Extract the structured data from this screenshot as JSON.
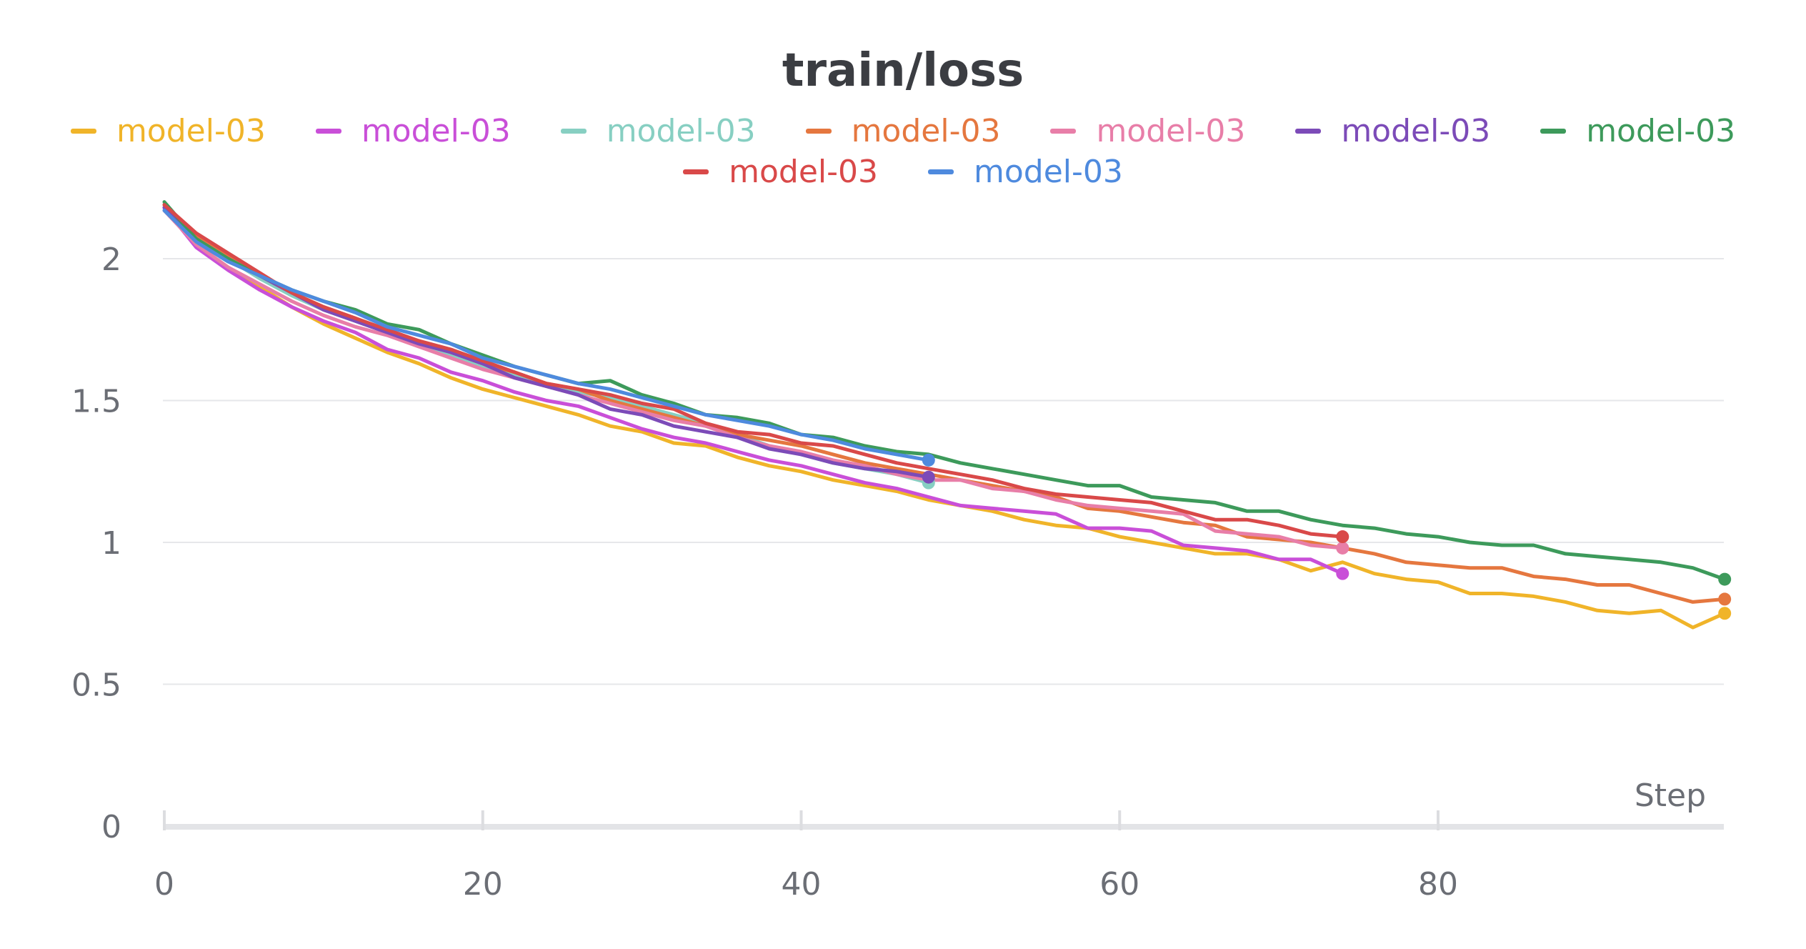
{
  "chart_data": {
    "type": "line",
    "title": "train/loss",
    "xlabel": "Step",
    "ylabel": "",
    "xlim": [
      0,
      98
    ],
    "ylim": [
      0,
      2.25
    ],
    "xticks": [
      "0",
      "20",
      "40",
      "60",
      "80"
    ],
    "yticks": [
      "0",
      "0.5",
      "1",
      "1.5",
      "2"
    ],
    "grid": "horizontal",
    "legend": "top-center",
    "series": [
      {
        "name": "model-03",
        "color": "#f0b429",
        "end_marker": true,
        "x": [
          0,
          2,
          4,
          6,
          8,
          10,
          12,
          14,
          16,
          18,
          20,
          22,
          24,
          26,
          28,
          30,
          32,
          34,
          36,
          38,
          40,
          42,
          44,
          46,
          48,
          50,
          52,
          54,
          56,
          58,
          60,
          62,
          64,
          66,
          68,
          70,
          72,
          74,
          76,
          78,
          80,
          82,
          84,
          86,
          88,
          90,
          92,
          94,
          96,
          98
        ],
        "y": [
          2.18,
          2.05,
          1.97,
          1.9,
          1.83,
          1.77,
          1.72,
          1.67,
          1.63,
          1.58,
          1.54,
          1.51,
          1.48,
          1.45,
          1.41,
          1.39,
          1.35,
          1.34,
          1.3,
          1.27,
          1.25,
          1.22,
          1.2,
          1.18,
          1.15,
          1.13,
          1.11,
          1.08,
          1.06,
          1.05,
          1.02,
          1.0,
          0.98,
          0.96,
          0.96,
          0.94,
          0.9,
          0.93,
          0.89,
          0.87,
          0.86,
          0.82,
          0.82,
          0.81,
          0.79,
          0.76,
          0.75,
          0.76,
          0.7,
          0.75
        ]
      },
      {
        "name": "model-03",
        "color": "#c94fd8",
        "end_marker": true,
        "x": [
          0,
          2,
          4,
          6,
          8,
          10,
          12,
          14,
          16,
          18,
          20,
          22,
          24,
          26,
          28,
          30,
          32,
          34,
          36,
          38,
          40,
          42,
          44,
          46,
          48,
          50,
          52,
          54,
          56,
          58,
          60,
          62,
          64,
          66,
          68,
          70,
          72,
          74
        ],
        "y": [
          2.18,
          2.04,
          1.96,
          1.89,
          1.83,
          1.78,
          1.74,
          1.68,
          1.65,
          1.6,
          1.57,
          1.53,
          1.5,
          1.48,
          1.44,
          1.4,
          1.37,
          1.35,
          1.32,
          1.29,
          1.27,
          1.24,
          1.21,
          1.19,
          1.16,
          1.13,
          1.12,
          1.11,
          1.1,
          1.05,
          1.05,
          1.04,
          0.99,
          0.98,
          0.97,
          0.94,
          0.94,
          0.89
        ]
      },
      {
        "name": "model-03",
        "color": "#87cfc2",
        "end_marker": true,
        "x": [
          0,
          2,
          4,
          6,
          8,
          10,
          12,
          14,
          16,
          18,
          20,
          22,
          24,
          26,
          28,
          30,
          32,
          34,
          36,
          38,
          40,
          42,
          44,
          46,
          48
        ],
        "y": [
          2.19,
          2.07,
          2.0,
          1.93,
          1.87,
          1.82,
          1.78,
          1.74,
          1.7,
          1.66,
          1.62,
          1.59,
          1.56,
          1.53,
          1.51,
          1.48,
          1.45,
          1.42,
          1.38,
          1.34,
          1.31,
          1.28,
          1.26,
          1.24,
          1.21
        ]
      },
      {
        "name": "model-03",
        "color": "#e5773f",
        "end_marker": true,
        "x": [
          0,
          2,
          4,
          6,
          8,
          10,
          12,
          14,
          16,
          18,
          20,
          22,
          24,
          26,
          28,
          30,
          32,
          34,
          36,
          38,
          40,
          42,
          44,
          46,
          48,
          50,
          52,
          54,
          56,
          58,
          60,
          62,
          64,
          66,
          68,
          70,
          72,
          74,
          76,
          78,
          80,
          82,
          84,
          86,
          88,
          90,
          92,
          94,
          96,
          98
        ],
        "y": [
          2.19,
          2.08,
          2.01,
          1.94,
          1.88,
          1.83,
          1.79,
          1.74,
          1.71,
          1.67,
          1.63,
          1.6,
          1.56,
          1.54,
          1.5,
          1.47,
          1.44,
          1.41,
          1.38,
          1.36,
          1.34,
          1.31,
          1.28,
          1.26,
          1.24,
          1.22,
          1.2,
          1.18,
          1.16,
          1.12,
          1.11,
          1.09,
          1.07,
          1.06,
          1.02,
          1.01,
          1.0,
          0.98,
          0.96,
          0.93,
          0.92,
          0.91,
          0.91,
          0.88,
          0.87,
          0.85,
          0.85,
          0.82,
          0.79,
          0.8
        ]
      },
      {
        "name": "model-03",
        "color": "#e87ea8",
        "end_marker": true,
        "x": [
          0,
          2,
          4,
          6,
          8,
          10,
          12,
          14,
          16,
          18,
          20,
          22,
          24,
          26,
          28,
          30,
          32,
          34,
          36,
          38,
          40,
          42,
          44,
          46,
          48,
          50,
          52,
          54,
          56,
          58,
          60,
          62,
          64,
          66,
          68,
          70,
          72,
          74
        ],
        "y": [
          2.17,
          2.05,
          1.97,
          1.91,
          1.85,
          1.8,
          1.76,
          1.73,
          1.69,
          1.65,
          1.61,
          1.58,
          1.55,
          1.52,
          1.49,
          1.46,
          1.43,
          1.41,
          1.37,
          1.34,
          1.32,
          1.29,
          1.27,
          1.24,
          1.22,
          1.22,
          1.19,
          1.18,
          1.15,
          1.13,
          1.12,
          1.11,
          1.1,
          1.04,
          1.03,
          1.02,
          0.99,
          0.98
        ]
      },
      {
        "name": "model-03",
        "color": "#7c4bb8",
        "end_marker": true,
        "x": [
          0,
          2,
          4,
          6,
          8,
          10,
          12,
          14,
          16,
          18,
          20,
          22,
          24,
          26,
          28,
          30,
          32,
          34,
          36,
          38,
          40,
          42,
          44,
          46,
          48
        ],
        "y": [
          2.18,
          2.07,
          2.0,
          1.94,
          1.88,
          1.82,
          1.78,
          1.74,
          1.7,
          1.67,
          1.63,
          1.58,
          1.55,
          1.52,
          1.47,
          1.45,
          1.41,
          1.39,
          1.37,
          1.33,
          1.31,
          1.28,
          1.26,
          1.25,
          1.23
        ]
      },
      {
        "name": "model-03",
        "color": "#3d9a5b",
        "end_marker": true,
        "x": [
          0,
          2,
          4,
          6,
          8,
          10,
          12,
          14,
          16,
          18,
          20,
          22,
          24,
          26,
          28,
          30,
          32,
          34,
          36,
          38,
          40,
          42,
          44,
          46,
          48,
          50,
          52,
          54,
          56,
          58,
          60,
          62,
          64,
          66,
          68,
          70,
          72,
          74,
          76,
          78,
          80,
          82,
          84,
          86,
          88,
          90,
          92,
          94,
          96,
          98
        ],
        "y": [
          2.2,
          2.07,
          2.0,
          1.94,
          1.89,
          1.85,
          1.82,
          1.77,
          1.75,
          1.7,
          1.66,
          1.62,
          1.59,
          1.56,
          1.57,
          1.52,
          1.49,
          1.45,
          1.44,
          1.42,
          1.38,
          1.37,
          1.34,
          1.32,
          1.31,
          1.28,
          1.26,
          1.24,
          1.22,
          1.2,
          1.2,
          1.16,
          1.15,
          1.14,
          1.11,
          1.11,
          1.08,
          1.06,
          1.05,
          1.03,
          1.02,
          1.0,
          0.99,
          0.99,
          0.96,
          0.95,
          0.94,
          0.93,
          0.91,
          0.87
        ]
      },
      {
        "name": "model-03",
        "color": "#d94949",
        "end_marker": true,
        "x": [
          0,
          2,
          4,
          6,
          8,
          10,
          12,
          14,
          16,
          18,
          20,
          22,
          24,
          26,
          28,
          30,
          32,
          34,
          36,
          38,
          40,
          42,
          44,
          46,
          48,
          50,
          52,
          54,
          56,
          58,
          60,
          62,
          64,
          66,
          68,
          70,
          72,
          74
        ],
        "y": [
          2.19,
          2.09,
          2.02,
          1.95,
          1.88,
          1.83,
          1.79,
          1.75,
          1.71,
          1.68,
          1.64,
          1.6,
          1.56,
          1.54,
          1.52,
          1.49,
          1.47,
          1.42,
          1.39,
          1.38,
          1.35,
          1.34,
          1.31,
          1.28,
          1.26,
          1.24,
          1.22,
          1.19,
          1.17,
          1.16,
          1.15,
          1.14,
          1.11,
          1.08,
          1.08,
          1.06,
          1.03,
          1.02
        ]
      },
      {
        "name": "model-03",
        "color": "#4e8ade",
        "end_marker": true,
        "x": [
          0,
          2,
          4,
          6,
          8,
          10,
          12,
          14,
          16,
          18,
          20,
          22,
          24,
          26,
          28,
          30,
          32,
          34,
          36,
          38,
          40,
          42,
          44,
          46,
          48
        ],
        "y": [
          2.17,
          2.06,
          1.99,
          1.94,
          1.89,
          1.85,
          1.81,
          1.76,
          1.73,
          1.7,
          1.65,
          1.62,
          1.59,
          1.56,
          1.54,
          1.51,
          1.48,
          1.45,
          1.43,
          1.41,
          1.38,
          1.36,
          1.33,
          1.31,
          1.29
        ]
      }
    ]
  }
}
